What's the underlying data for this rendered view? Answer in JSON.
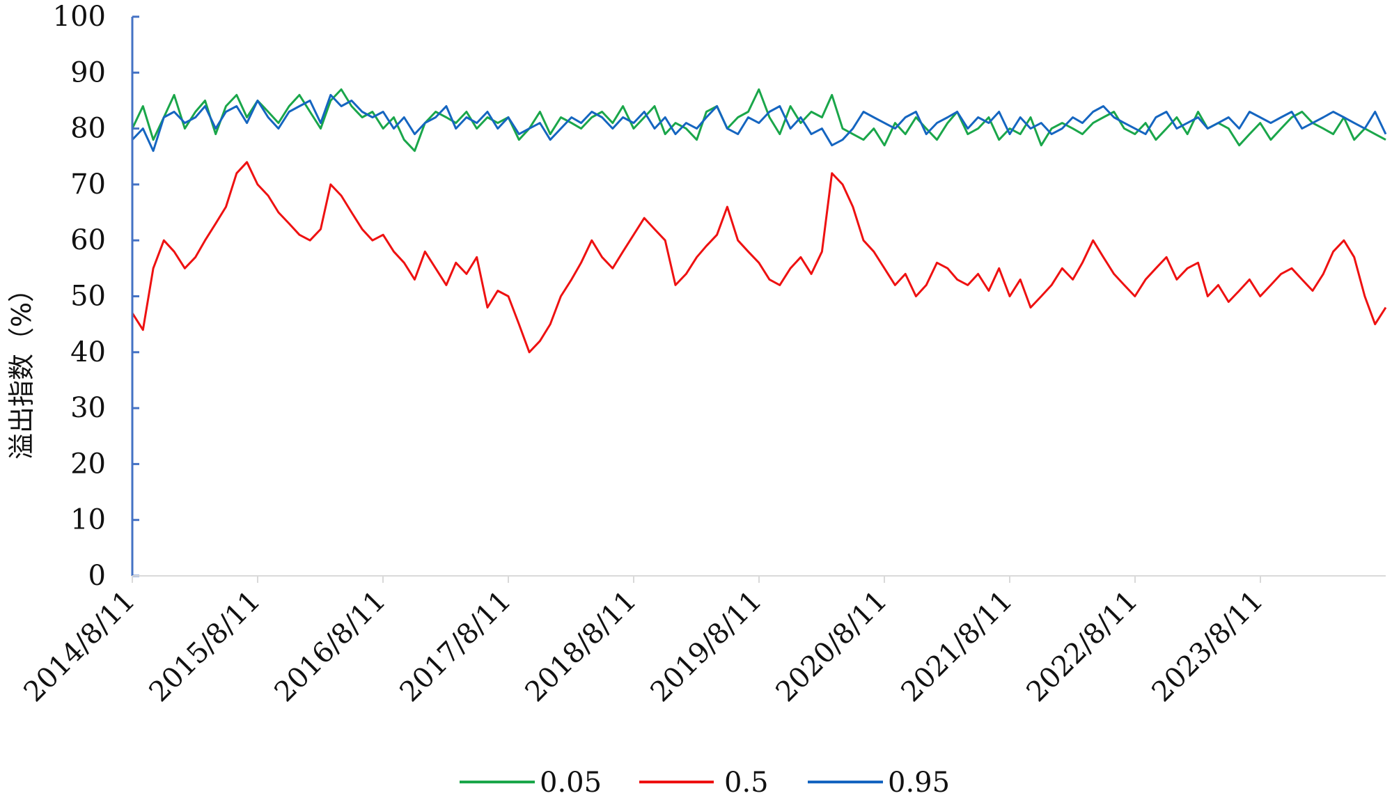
{
  "chart_data": {
    "type": "line",
    "title": "",
    "xlabel": "",
    "ylabel": "溢出指数（%）",
    "ylim": [
      0,
      100
    ],
    "yticks": [
      0,
      10,
      20,
      30,
      40,
      50,
      60,
      70,
      80,
      90,
      100
    ],
    "xlim": [
      "2014-08-11",
      "2024-08-11"
    ],
    "x_tick_labels": [
      "2014/8/11",
      "2015/8/11",
      "2016/8/11",
      "2017/8/11",
      "2018/8/11",
      "2019/8/11",
      "2020/8/11",
      "2021/8/11",
      "2022/8/11",
      "2023/8/11"
    ],
    "grid": false,
    "legend_position": "bottom",
    "x": [
      "2014-08-11",
      "2014-09-11",
      "2014-10-11",
      "2014-11-11",
      "2014-12-11",
      "2015-01-11",
      "2015-02-11",
      "2015-03-11",
      "2015-04-11",
      "2015-05-11",
      "2015-06-11",
      "2015-07-11",
      "2015-08-11",
      "2015-09-11",
      "2015-10-11",
      "2015-11-11",
      "2015-12-11",
      "2016-01-11",
      "2016-02-11",
      "2016-03-11",
      "2016-04-11",
      "2016-05-11",
      "2016-06-11",
      "2016-07-11",
      "2016-08-11",
      "2016-09-11",
      "2016-10-11",
      "2016-11-11",
      "2016-12-11",
      "2017-01-11",
      "2017-02-11",
      "2017-03-11",
      "2017-04-11",
      "2017-05-11",
      "2017-06-11",
      "2017-07-11",
      "2017-08-11",
      "2017-09-11",
      "2017-10-11",
      "2017-11-11",
      "2017-12-11",
      "2018-01-11",
      "2018-02-11",
      "2018-03-11",
      "2018-04-11",
      "2018-05-11",
      "2018-06-11",
      "2018-07-11",
      "2018-08-11",
      "2018-09-11",
      "2018-10-11",
      "2018-11-11",
      "2018-12-11",
      "2019-01-11",
      "2019-02-11",
      "2019-03-11",
      "2019-04-11",
      "2019-05-11",
      "2019-06-11",
      "2019-07-11",
      "2019-08-11",
      "2019-09-11",
      "2019-10-11",
      "2019-11-11",
      "2019-12-11",
      "2020-01-11",
      "2020-02-11",
      "2020-03-11",
      "2020-04-11",
      "2020-05-11",
      "2020-06-11",
      "2020-07-11",
      "2020-08-11",
      "2020-09-11",
      "2020-10-11",
      "2020-11-11",
      "2020-12-11",
      "2021-01-11",
      "2021-02-11",
      "2021-03-11",
      "2021-04-11",
      "2021-05-11",
      "2021-06-11",
      "2021-07-11",
      "2021-08-11",
      "2021-09-11",
      "2021-10-11",
      "2021-11-11",
      "2021-12-11",
      "2022-01-11",
      "2022-02-11",
      "2022-03-11",
      "2022-04-11",
      "2022-05-11",
      "2022-06-11",
      "2022-07-11",
      "2022-08-11",
      "2022-09-11",
      "2022-10-11",
      "2022-11-11",
      "2022-12-11",
      "2023-01-11",
      "2023-02-11",
      "2023-03-11",
      "2023-04-11",
      "2023-05-11",
      "2023-06-11",
      "2023-07-11",
      "2023-08-11",
      "2023-09-11",
      "2023-10-11",
      "2023-11-11",
      "2023-12-11",
      "2024-01-11",
      "2024-02-11",
      "2024-03-11",
      "2024-04-11",
      "2024-05-11",
      "2024-06-11",
      "2024-07-11",
      "2024-08-11"
    ],
    "series": [
      {
        "name": "0.05",
        "color": "#1aa64a",
        "values": [
          80,
          84,
          78,
          82,
          86,
          80,
          83,
          85,
          79,
          84,
          86,
          82,
          85,
          83,
          81,
          84,
          86,
          83,
          80,
          85,
          87,
          84,
          82,
          83,
          80,
          82,
          78,
          76,
          81,
          83,
          82,
          81,
          83,
          80,
          82,
          81,
          82,
          78,
          80,
          83,
          79,
          82,
          81,
          80,
          82,
          83,
          81,
          84,
          80,
          82,
          84,
          79,
          81,
          80,
          78,
          83,
          84,
          80,
          82,
          83,
          87,
          82,
          79,
          84,
          81,
          83,
          82,
          86,
          80,
          79,
          78,
          80,
          77,
          81,
          79,
          82,
          80,
          78,
          81,
          83,
          79,
          80,
          82,
          78,
          80,
          79,
          82,
          77,
          80,
          81,
          80,
          79,
          81,
          82,
          83,
          80,
          79,
          81,
          78,
          80,
          82,
          79,
          83,
          80,
          81,
          80,
          77,
          79,
          81,
          78,
          80,
          82,
          83,
          81,
          80,
          79,
          82,
          78,
          80,
          79,
          78
        ]
      },
      {
        "name": "0.5",
        "color": "#ee1111",
        "values": [
          47,
          44,
          55,
          60,
          58,
          55,
          57,
          60,
          63,
          66,
          72,
          74,
          70,
          68,
          65,
          63,
          61,
          60,
          62,
          70,
          68,
          65,
          62,
          60,
          61,
          58,
          56,
          53,
          58,
          55,
          52,
          56,
          54,
          57,
          48,
          51,
          50,
          45,
          40,
          42,
          45,
          50,
          53,
          56,
          60,
          57,
          55,
          58,
          61,
          64,
          62,
          60,
          52,
          54,
          57,
          59,
          61,
          66,
          60,
          58,
          56,
          53,
          52,
          55,
          57,
          54,
          58,
          72,
          70,
          66,
          60,
          58,
          55,
          52,
          54,
          50,
          52,
          56,
          55,
          53,
          52,
          54,
          51,
          55,
          50,
          53,
          48,
          50,
          52,
          55,
          53,
          56,
          60,
          57,
          54,
          52,
          50,
          53,
          55,
          57,
          53,
          55,
          56,
          50,
          52,
          49,
          51,
          53,
          50,
          52,
          54,
          55,
          53,
          51,
          54,
          58,
          60,
          57,
          50,
          45,
          48
        ]
      },
      {
        "name": "0.95",
        "color": "#1565c0",
        "values": [
          78,
          80,
          76,
          82,
          83,
          81,
          82,
          84,
          80,
          83,
          84,
          81,
          85,
          82,
          80,
          83,
          84,
          85,
          81,
          86,
          84,
          85,
          83,
          82,
          83,
          80,
          82,
          79,
          81,
          82,
          84,
          80,
          82,
          81,
          83,
          80,
          82,
          79,
          80,
          81,
          78,
          80,
          82,
          81,
          83,
          82,
          80,
          82,
          81,
          83,
          80,
          82,
          79,
          81,
          80,
          82,
          84,
          80,
          79,
          82,
          81,
          83,
          84,
          80,
          82,
          79,
          80,
          77,
          78,
          80,
          83,
          82,
          81,
          80,
          82,
          83,
          79,
          81,
          82,
          83,
          80,
          82,
          81,
          83,
          79,
          82,
          80,
          81,
          79,
          80,
          82,
          81,
          83,
          84,
          82,
          81,
          80,
          79,
          82,
          83,
          80,
          81,
          82,
          80,
          81,
          82,
          80,
          83,
          82,
          81,
          82,
          83,
          80,
          81,
          82,
          83,
          82,
          81,
          80,
          83,
          79
        ]
      }
    ]
  }
}
